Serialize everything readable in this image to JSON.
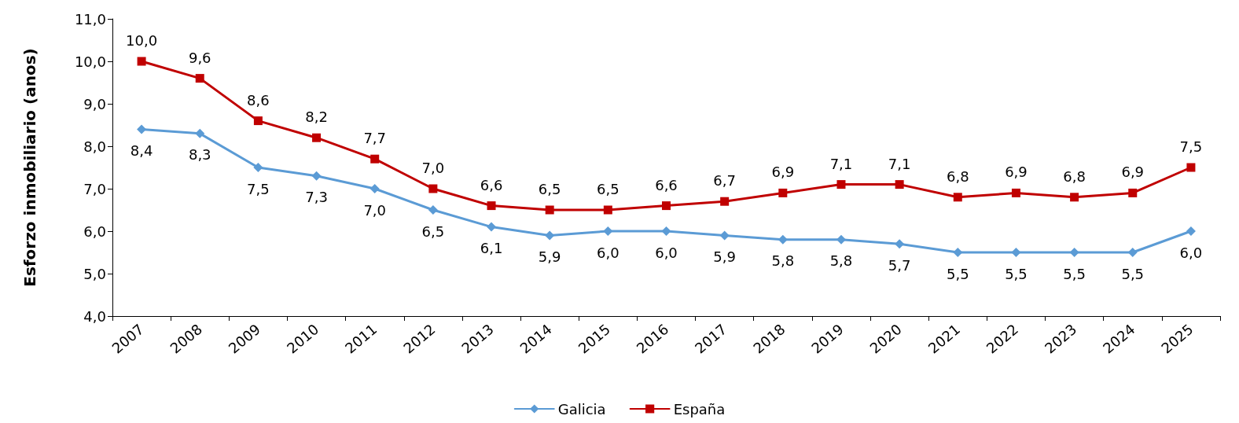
{
  "chart_data": {
    "type": "line",
    "ylabel": "Esforzo inmobiliario (anos)",
    "categories": [
      "2007",
      "2008",
      "2009",
      "2010",
      "2011",
      "2012",
      "2013",
      "2014",
      "2015",
      "2016",
      "2017",
      "2018",
      "2019",
      "2020",
      "2021",
      "2022",
      "2023",
      "2024",
      "2025"
    ],
    "series": [
      {
        "name": "Galicia",
        "color": "#5b9bd5",
        "marker": "diamond",
        "values": [
          8.4,
          8.3,
          7.5,
          7.3,
          7.0,
          6.5,
          6.1,
          5.9,
          6.0,
          6.0,
          5.9,
          5.8,
          5.8,
          5.7,
          5.5,
          5.5,
          5.5,
          5.5,
          6.0
        ],
        "value_labels": [
          "8,4",
          "8,3",
          "7,5",
          "7,3",
          "7,0",
          "6,5",
          "6,1",
          "5,9",
          "6,0",
          "6,0",
          "5,9",
          "5,8",
          "5,8",
          "5,7",
          "5,5",
          "5,5",
          "5,5",
          "5,5",
          "6,0"
        ]
      },
      {
        "name": "España",
        "color": "#c00000",
        "marker": "square",
        "values": [
          10.0,
          9.6,
          8.6,
          8.2,
          7.7,
          7.0,
          6.6,
          6.5,
          6.5,
          6.6,
          6.7,
          6.9,
          7.1,
          7.1,
          6.8,
          6.9,
          6.8,
          6.9,
          7.5
        ],
        "value_labels": [
          "10,0",
          "9,6",
          "8,6",
          "8,2",
          "7,7",
          "7,0",
          "6,6",
          "6,5",
          "6,5",
          "6,6",
          "6,7",
          "6,9",
          "7,1",
          "7,1",
          "6,8",
          "6,9",
          "6,8",
          "6,9",
          "7,5"
        ]
      }
    ],
    "ylim": [
      4,
      11
    ],
    "yticks": [
      {
        "value": 4,
        "label": "4,0"
      },
      {
        "value": 5,
        "label": "5,0"
      },
      {
        "value": 6,
        "label": "6,0"
      },
      {
        "value": 7,
        "label": "7,0"
      },
      {
        "value": 8,
        "label": "8,0"
      },
      {
        "value": 9,
        "label": "9,0"
      },
      {
        "value": 10,
        "label": "10,0"
      },
      {
        "value": 11,
        "label": "11,0"
      }
    ],
    "legend": "bottom",
    "grid": false,
    "line_style": "solid"
  }
}
